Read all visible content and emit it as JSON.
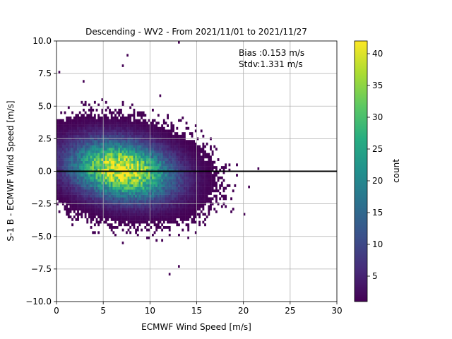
{
  "chart_data": {
    "type": "heatmap",
    "title": "Descending - WV2 - From 2021/11/01 to 2021/11/27",
    "xlabel": "ECMWF Wind Speed [m/s]",
    "ylabel": "S-1 B - ECMWF Wind Speed [m/s]",
    "xlim": [
      0,
      30
    ],
    "ylim": [
      -10,
      10
    ],
    "xticks": [
      0,
      5,
      10,
      15,
      20,
      25,
      30
    ],
    "xtick_labels": [
      "0",
      "5",
      "10",
      "15",
      "20",
      "25",
      "30"
    ],
    "yticks": [
      -10,
      -7.5,
      -5,
      -2.5,
      0,
      2.5,
      5,
      7.5,
      10
    ],
    "ytick_labels": [
      "−10.0",
      "−7.5",
      "−5.0",
      "−2.5",
      "0.0",
      "2.5",
      "5.0",
      "7.5",
      "10.0"
    ],
    "grid": true,
    "reference_line_y": 0,
    "annotations": [
      "Bias :0.153 m/s",
      "Stdv:1.331 m/s"
    ],
    "colorbar": {
      "label": "count",
      "colormap": "viridis",
      "range": [
        1,
        42
      ],
      "ticks": [
        5,
        10,
        15,
        20,
        25,
        30,
        35,
        40
      ],
      "tick_labels": [
        "5",
        "10",
        "15",
        "20",
        "25",
        "30",
        "35",
        "40"
      ]
    },
    "density_peak": {
      "x": 7.0,
      "y": 0.1,
      "max_count": 42
    },
    "outliers": [
      [
        13.0,
        9.8
      ],
      [
        7.5,
        8.8
      ],
      [
        7.0,
        8.0
      ],
      [
        0.2,
        7.5
      ],
      [
        2.8,
        6.8
      ],
      [
        11.0,
        5.7
      ],
      [
        13.0,
        -7.4
      ],
      [
        12.0,
        -8.0
      ],
      [
        20.0,
        -3.4
      ],
      [
        21.5,
        0.1
      ],
      [
        20.5,
        -1.3
      ],
      [
        7.0,
        -5.6
      ],
      [
        14.0,
        -5.2
      ]
    ]
  }
}
